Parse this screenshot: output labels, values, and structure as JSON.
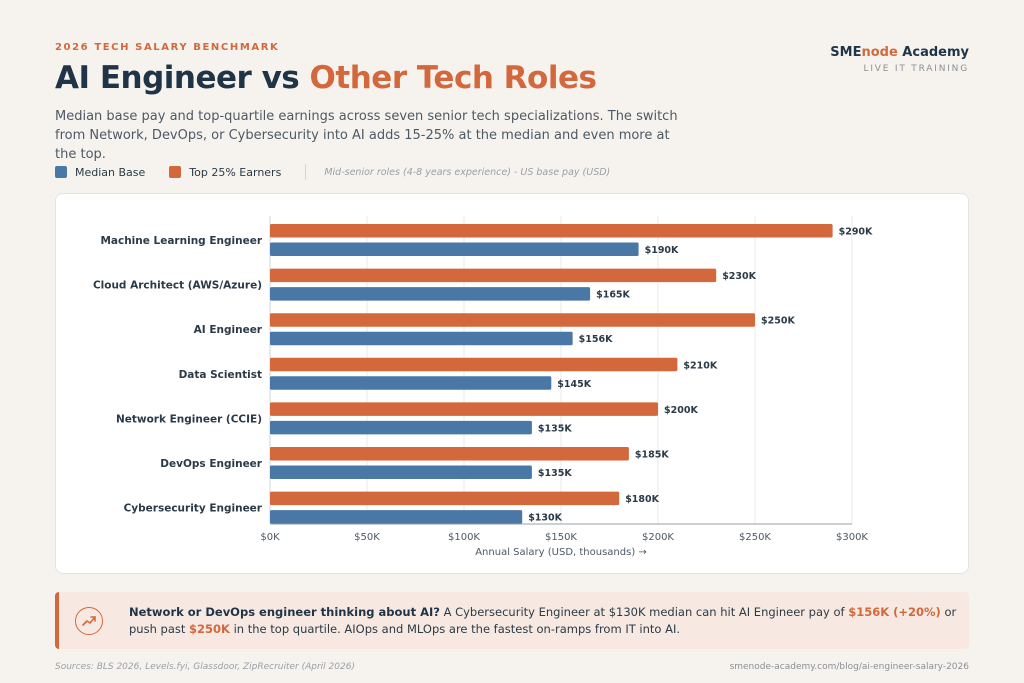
{
  "header": {
    "eyebrow": "2026 TECH SALARY BENCHMARK",
    "title_main": "AI Engineer vs ",
    "title_accent": "Other Tech Roles",
    "subtitle": "Median base pay and top-quartile earnings across seven senior tech specializations. The switch from Network, DevOps, or Cybersecurity into AI adds 15-25% at the median and even more at the top."
  },
  "brand": {
    "name_part1": "SME",
    "name_part2": "node",
    "name_part3": " Academy",
    "tagline": "LIVE IT TRAINING"
  },
  "legend": {
    "median_label": "Median Base",
    "top_label": "Top 25% Earners",
    "note": "Mid-senior roles (4-8 years experience) - US base pay (USD)"
  },
  "colors": {
    "median": "#4a78a6",
    "top": "#d2683c",
    "grid": "#e8e8e8",
    "axis": "#9aa0a6"
  },
  "chart_data": {
    "type": "bar",
    "orientation": "horizontal",
    "categories": [
      "Machine Learning Engineer",
      "Cloud Architect (AWS/Azure)",
      "AI Engineer",
      "Data Scientist",
      "Network Engineer (CCIE)",
      "DevOps Engineer",
      "Cybersecurity Engineer"
    ],
    "series": [
      {
        "name": "Top 25% Earners",
        "values": [
          290,
          230,
          250,
          210,
          200,
          185,
          180
        ],
        "labels": [
          "$290K",
          "$230K",
          "$250K",
          "$210K",
          "$200K",
          "$185K",
          "$180K"
        ]
      },
      {
        "name": "Median Base",
        "values": [
          190,
          165,
          156,
          145,
          135,
          135,
          130
        ],
        "labels": [
          "$190K",
          "$165K",
          "$156K",
          "$145K",
          "$135K",
          "$135K",
          "$130K"
        ]
      }
    ],
    "xlim": [
      0,
      300
    ],
    "xticks": [
      0,
      50,
      100,
      150,
      200,
      250,
      300
    ],
    "xtick_labels": [
      "$0K",
      "$50K",
      "$100K",
      "$150K",
      "$200K",
      "$250K",
      "$300K"
    ],
    "xlabel": "Annual Salary (USD, thousands) →",
    "grid": true
  },
  "callout": {
    "lead": "Network or DevOps engineer thinking about AI?",
    "text1": " A Cybersecurity Engineer at $130K median can hit AI Engineer pay of ",
    "hl1": "$156K (+20%)",
    "text2": " or push past ",
    "hl2": "$250K",
    "text3": " in the top quartile. AIOps and MLOps are the fastest on-ramps from IT into AI."
  },
  "footer": {
    "sources": "Sources: BLS 2026, Levels.fyi, Glassdoor, ZipRecruiter (April 2026)",
    "url": "smenode-academy.com/blog/ai-engineer-salary-2026"
  }
}
